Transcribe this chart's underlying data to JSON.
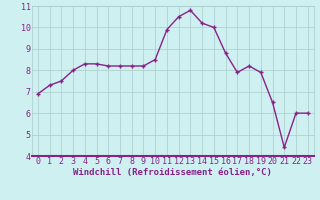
{
  "x": [
    0,
    1,
    2,
    3,
    4,
    5,
    6,
    7,
    8,
    9,
    10,
    11,
    12,
    13,
    14,
    15,
    16,
    17,
    18,
    19,
    20,
    21,
    22,
    23
  ],
  "y": [
    6.9,
    7.3,
    7.5,
    8.0,
    8.3,
    8.3,
    8.2,
    8.2,
    8.2,
    8.2,
    8.5,
    9.9,
    10.5,
    10.8,
    10.2,
    10.0,
    8.8,
    7.9,
    8.2,
    7.9,
    6.5,
    4.4,
    6.0,
    6.0
  ],
  "line_color": "#882288",
  "marker": "+",
  "marker_size": 3.5,
  "linewidth": 1.0,
  "markeredgewidth": 1.0,
  "xlabel": "Windchill (Refroidissement éolien,°C)",
  "xlim": [
    -0.5,
    23.5
  ],
  "ylim": [
    4,
    11
  ],
  "yticks": [
    4,
    5,
    6,
    7,
    8,
    9,
    10,
    11
  ],
  "xticks": [
    0,
    1,
    2,
    3,
    4,
    5,
    6,
    7,
    8,
    9,
    10,
    11,
    12,
    13,
    14,
    15,
    16,
    17,
    18,
    19,
    20,
    21,
    22,
    23
  ],
  "xtick_labels": [
    "0",
    "1",
    "2",
    "3",
    "4",
    "5",
    "6",
    "7",
    "8",
    "9",
    "10",
    "11",
    "12",
    "13",
    "14",
    "15",
    "16",
    "17",
    "18",
    "19",
    "20",
    "21",
    "22",
    "23"
  ],
  "background_color": "#cff0f0",
  "grid_color": "#aacccc",
  "xlabel_fontsize": 6.5,
  "tick_fontsize": 6.0,
  "label_color": "#882288",
  "spine_color": "#882288",
  "spine_bottom_color": "#882288"
}
